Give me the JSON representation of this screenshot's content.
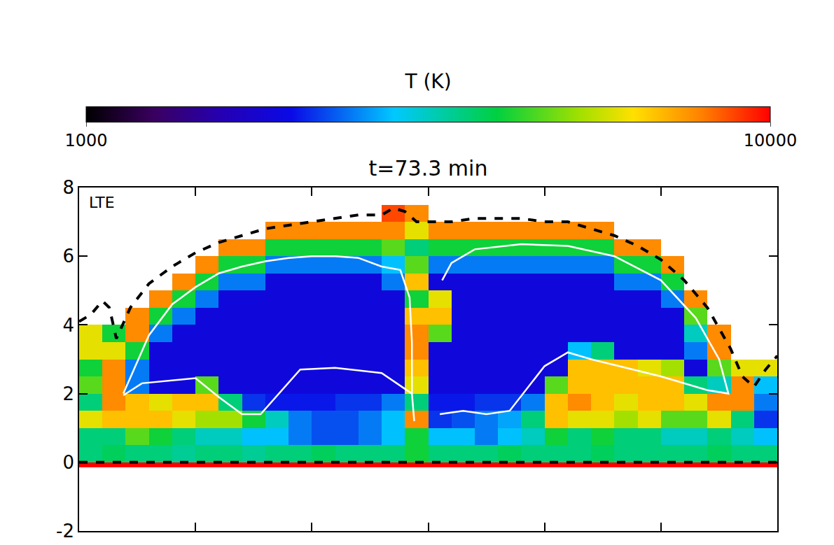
{
  "chart_data": {
    "type": "heatmap",
    "title": "t=73.3 min",
    "annotations": [
      "LTE"
    ],
    "xlim": [
      0,
      30
    ],
    "ylim": [
      -2,
      8
    ],
    "xticks": [
      5,
      10,
      15,
      20,
      25
    ],
    "yticks": [
      -2,
      0,
      2,
      4,
      6,
      8
    ],
    "tick_labels": "y",
    "colorbar": {
      "title": "T (K)",
      "range": [
        1000,
        10000
      ],
      "ticks": [
        1000,
        10000
      ]
    },
    "x_edges": [
      0,
      1,
      2,
      3,
      4,
      5,
      6,
      7,
      8,
      9,
      10,
      11,
      12,
      13,
      14,
      15,
      16,
      17,
      18,
      19,
      20,
      21,
      22,
      23,
      24,
      25,
      26,
      27,
      28,
      29,
      30
    ],
    "y_edges": [
      -2,
      -0.15,
      0,
      0.5,
      1,
      1.5,
      2,
      2.5,
      3,
      3.5,
      4,
      4.5,
      5,
      5.5,
      6,
      6.5,
      7,
      7.5,
      8
    ],
    "cells": [
      [
        null,
        null,
        null,
        null,
        null,
        null,
        null,
        null,
        null,
        null,
        null,
        null,
        null,
        null,
        null,
        null,
        null,
        null,
        null,
        null,
        null,
        null,
        null,
        null,
        null,
        null,
        null,
        null,
        null,
        null
      ],
      [
        10000,
        10000,
        10000,
        10000,
        10000,
        10000,
        10000,
        10000,
        10000,
        10000,
        10000,
        10000,
        10000,
        10000,
        10000,
        10000,
        10000,
        10000,
        10000,
        10000,
        10000,
        10000,
        10000,
        10000,
        10000,
        10000,
        10000,
        10000,
        10000,
        10000
      ],
      [
        6000,
        6200,
        6000,
        6000,
        5800,
        6000,
        6000,
        5800,
        6000,
        6000,
        6200,
        6000,
        6000,
        6000,
        6500,
        6000,
        6000,
        6000,
        6200,
        6000,
        6000,
        6000,
        6200,
        6000,
        6000,
        6000,
        6000,
        6200,
        6000,
        6000
      ],
      [
        6000,
        6000,
        7000,
        6500,
        6000,
        5500,
        5500,
        5000,
        5000,
        4500,
        4200,
        4200,
        4500,
        5000,
        6500,
        5000,
        5000,
        4500,
        5000,
        5500,
        6500,
        6000,
        6500,
        6000,
        6000,
        5500,
        5500,
        6000,
        5500,
        5000
      ],
      [
        8000,
        8500,
        8500,
        8500,
        8000,
        7500,
        7500,
        6500,
        5500,
        4500,
        4200,
        4200,
        4500,
        5000,
        9000,
        4000,
        4200,
        4500,
        4800,
        6000,
        8500,
        8000,
        8000,
        7500,
        8000,
        7000,
        7000,
        8000,
        6000,
        4000
      ],
      [
        6000,
        9000,
        8500,
        8000,
        8500,
        8500,
        6000,
        4000,
        3800,
        3800,
        3800,
        4000,
        4000,
        4500,
        6000,
        3800,
        3800,
        4000,
        4000,
        4500,
        8500,
        9000,
        8500,
        8000,
        8500,
        8500,
        8000,
        9000,
        9000,
        4500
      ],
      [
        7000,
        9000,
        4500,
        3500,
        3500,
        7000,
        3500,
        3500,
        3500,
        3500,
        3500,
        3500,
        3500,
        3500,
        8000,
        3500,
        3500,
        3500,
        3500,
        3500,
        7000,
        8500,
        8500,
        8500,
        8500,
        8500,
        6000,
        5500,
        9000,
        5000
      ],
      [
        6500,
        9000,
        4500,
        3500,
        3500,
        3500,
        3500,
        3500,
        3500,
        3500,
        3500,
        3500,
        3500,
        3500,
        8500,
        3500,
        3500,
        3500,
        3500,
        3500,
        3500,
        8500,
        8500,
        8500,
        8000,
        7500,
        3500,
        7000,
        8000,
        8000
      ],
      [
        8000,
        8000,
        6500,
        3500,
        3500,
        3500,
        3500,
        3500,
        3500,
        3500,
        3500,
        3500,
        3500,
        3500,
        9000,
        3500,
        3500,
        3500,
        3500,
        3500,
        3500,
        5000,
        6000,
        3500,
        3500,
        3500,
        4500,
        9000,
        null,
        null
      ],
      [
        8000,
        6500,
        9000,
        4500,
        3500,
        3500,
        3500,
        3500,
        3500,
        3500,
        3500,
        3500,
        3500,
        3500,
        9000,
        7000,
        3500,
        3500,
        3500,
        3500,
        3500,
        3500,
        3500,
        3500,
        3500,
        3500,
        5500,
        9000,
        null,
        null
      ],
      [
        null,
        null,
        9000,
        6500,
        4500,
        3500,
        3500,
        3500,
        3500,
        3500,
        3500,
        3500,
        3500,
        3500,
        8500,
        8500,
        3500,
        3500,
        3500,
        3500,
        3500,
        3500,
        3500,
        3500,
        3500,
        3500,
        7000,
        null,
        null,
        null
      ],
      [
        null,
        null,
        null,
        9000,
        6500,
        4500,
        3500,
        3500,
        3500,
        3500,
        3500,
        3500,
        3500,
        3500,
        6500,
        8000,
        3500,
        3500,
        3500,
        3500,
        3500,
        3500,
        3500,
        3500,
        3500,
        4500,
        9000,
        null,
        null,
        null
      ],
      [
        null,
        null,
        null,
        null,
        9000,
        6500,
        4500,
        4500,
        3500,
        3500,
        3500,
        3500,
        3500,
        4500,
        8500,
        3500,
        3500,
        3500,
        3500,
        3500,
        3500,
        3500,
        3500,
        4500,
        4500,
        6500,
        null,
        null,
        null,
        null
      ],
      [
        null,
        null,
        null,
        null,
        null,
        9000,
        6500,
        6500,
        4500,
        4500,
        4500,
        4500,
        4500,
        5000,
        7000,
        4500,
        4500,
        4500,
        4500,
        4500,
        4500,
        4500,
        4500,
        6500,
        6500,
        9000,
        null,
        null,
        null,
        null
      ],
      [
        null,
        null,
        null,
        null,
        null,
        null,
        9000,
        9000,
        6500,
        6500,
        6500,
        6500,
        6500,
        7000,
        6000,
        6500,
        6500,
        6500,
        6500,
        6500,
        6500,
        6500,
        6500,
        9000,
        9000,
        null,
        null,
        null,
        null,
        null
      ],
      [
        null,
        null,
        null,
        null,
        null,
        null,
        null,
        null,
        9000,
        9000,
        9000,
        9000,
        9000,
        9000,
        8000,
        9000,
        9000,
        9000,
        9000,
        9000,
        9000,
        9000,
        9000,
        null,
        null,
        null,
        null,
        null,
        null,
        null
      ],
      [
        null,
        null,
        null,
        null,
        null,
        null,
        null,
        null,
        null,
        null,
        null,
        null,
        null,
        9500,
        9000,
        null,
        null,
        null,
        null,
        null,
        null,
        null,
        null,
        null,
        null,
        null,
        null,
        null,
        null,
        null
      ],
      [
        null,
        null,
        null,
        null,
        null,
        null,
        null,
        null,
        null,
        null,
        null,
        null,
        null,
        null,
        null,
        null,
        null,
        null,
        null,
        null,
        null,
        null,
        null,
        null,
        null,
        null,
        null,
        null,
        null,
        null
      ]
    ],
    "lines": [
      {
        "color": "black",
        "line_style": "dash",
        "x": [
          0,
          0.5,
          1.0,
          1.3,
          1.6,
          2.2,
          3,
          4,
          5,
          6,
          7,
          8,
          9,
          10,
          11,
          12,
          13,
          13.5,
          14,
          14.5,
          15,
          16,
          17,
          18,
          19,
          20,
          21,
          22,
          23,
          24,
          25,
          26,
          27,
          28,
          28.5,
          29,
          29.5,
          30
        ],
        "y": [
          4.1,
          4.3,
          4.7,
          4.5,
          3.6,
          4.5,
          5.2,
          5.7,
          6.1,
          6.4,
          6.6,
          6.8,
          6.9,
          7.0,
          7.1,
          7.2,
          7.2,
          7.4,
          7.3,
          7.0,
          7.0,
          7.0,
          7.1,
          7.1,
          7.1,
          7.0,
          7.0,
          6.8,
          6.6,
          6.3,
          5.9,
          5.3,
          4.5,
          3.3,
          2.5,
          2.2,
          2.7,
          3.1
        ]
      },
      {
        "color": "black",
        "line_style": "dash",
        "x": [
          0,
          30
        ],
        "y": [
          0,
          0
        ]
      },
      {
        "color": "white",
        "line_style": "solid",
        "x": [
          1.9,
          3,
          4,
          5,
          6,
          7,
          8,
          9,
          10,
          11,
          12,
          13,
          13.8,
          14.2,
          14.3,
          14.3,
          14.4,
          null,
          1.9,
          2.7,
          5.0,
          6.0,
          7.0,
          7.8,
          9.5,
          11,
          13,
          14.3,
          null,
          15.5,
          16.5,
          17.5,
          18.5,
          20,
          21,
          22,
          25,
          27,
          27.9,
          27.5,
          26.5,
          25,
          23,
          21,
          19,
          17,
          16,
          15.6
        ],
        "y": [
          2.0,
          3.7,
          4.6,
          5.1,
          5.5,
          5.7,
          5.85,
          5.95,
          6.0,
          6.0,
          5.95,
          5.7,
          5.6,
          4.8,
          3.5,
          2.0,
          1.2,
          null,
          1.95,
          2.3,
          2.45,
          1.9,
          1.4,
          1.4,
          2.7,
          2.75,
          2.6,
          2.0,
          null,
          1.4,
          1.5,
          1.4,
          1.5,
          2.8,
          3.2,
          3.0,
          2.5,
          2.1,
          2.0,
          3.0,
          4.2,
          5.3,
          6.0,
          6.3,
          6.35,
          6.2,
          5.8,
          5.3
        ]
      }
    ]
  }
}
